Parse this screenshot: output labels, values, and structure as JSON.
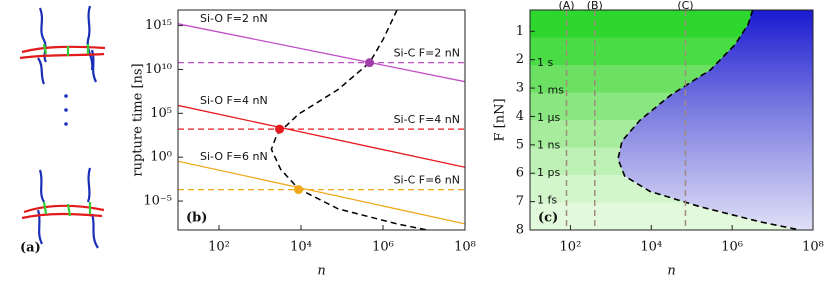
{
  "panel_a": {
    "label": "(a)"
  },
  "chart_data": [
    {
      "type": "line",
      "panel_label": "(b)",
      "xlabel": "n",
      "ylabel": "rupture time [ns]",
      "xscale": "log",
      "yscale": "log",
      "xlim": [
        10,
        100000000
      ],
      "ylim": [
        5e-09,
        6e+16
      ],
      "xticks": [
        {
          "value": 100,
          "label": "10²"
        },
        {
          "value": 10000,
          "label": "10⁴"
        },
        {
          "value": 1000000,
          "label": "10⁶"
        },
        {
          "value": 100000000,
          "label": "10⁸"
        }
      ],
      "yticks": [
        {
          "value": 1e-05,
          "label": "10⁻⁵"
        },
        {
          "value": 1,
          "label": "10⁰"
        },
        {
          "value": 100000,
          "label": "10⁵"
        },
        {
          "value": 10000000000,
          "label": "10¹⁰"
        },
        {
          "value": 1000000000000000.0,
          "label": "10¹⁵"
        }
      ],
      "series": [
        {
          "name": "Si-O F=2 nN",
          "color": "#c04fc8",
          "dashed": false,
          "x": [
            10,
            100000000
          ],
          "values": [
            1600000000000000.0,
            400000000
          ]
        },
        {
          "name": "Si-C F=2 nN",
          "color": "#c04fc8",
          "dashed": true,
          "x": [
            10,
            100000000
          ],
          "values": [
            60000000000,
            60000000000
          ]
        },
        {
          "name": "Si-O F=4 nN",
          "color": "#e8191e",
          "dashed": false,
          "x": [
            10,
            100000000
          ],
          "values": [
            800000,
            0.07
          ]
        },
        {
          "name": "Si-C F=4 nN",
          "color": "#e8191e",
          "dashed": true,
          "x": [
            10,
            100000000
          ],
          "values": [
            1600,
            1600
          ]
        },
        {
          "name": "Si-O F=6 nN",
          "color": "#f0a91c",
          "dashed": false,
          "x": [
            10,
            100000000
          ],
          "values": [
            0.35,
            2.5e-08
          ]
        },
        {
          "name": "Si-C F=6 nN",
          "color": "#f0a91c",
          "dashed": true,
          "x": [
            10,
            100000000
          ],
          "values": [
            0.0002,
            0.0002
          ]
        }
      ],
      "boundary": {
        "color": "#000000",
        "x": [
          2200000,
          1000000,
          470000,
          80000,
          8700,
          2600,
          1900,
          3200,
          8700,
          80000,
          2200000,
          12000000
        ],
        "values": [
          6e+16,
          25000000000000,
          60000000000,
          50000000,
          80000,
          400,
          8,
          0.04,
          0.00025,
          1.3e-06,
          2.5e-08,
          5e-09
        ]
      },
      "markers": {
        "x": [
          470000,
          3000,
          8700
        ],
        "values": [
          60000000000,
          1600,
          0.0002
        ],
        "colors": [
          "#a040a8",
          "#e8191e",
          "#f0a91c"
        ]
      }
    },
    {
      "type": "contour",
      "panel_label": "(c)",
      "xlabel": "n",
      "ylabel": "F [nN]",
      "xscale": "log",
      "xlim": [
        10,
        100000000
      ],
      "ylim": [
        0.25,
        8
      ],
      "y_inverted": true,
      "xticks": [
        {
          "value": 100,
          "label": "10²"
        },
        {
          "value": 10000,
          "label": "10⁴"
        },
        {
          "value": 1000000,
          "label": "10⁶"
        },
        {
          "value": 100000000,
          "label": "10⁸"
        }
      ],
      "yticks": [
        1,
        2,
        3,
        4,
        5,
        6,
        7,
        8
      ],
      "contour_labels": [
        "1 s",
        "1 ms",
        "1 µs",
        "1 ns",
        "1 ps",
        "1 fs"
      ],
      "boundary": {
        "x": [
          3200000,
          2500000,
          1200000,
          290000,
          30000,
          5200,
          1900,
          1500,
          2200,
          9300,
          160000,
          4900000,
          48000000
        ],
        "values": [
          0.25,
          0.75,
          1.46,
          2.36,
          3.25,
          4.14,
          4.86,
          5.5,
          6.1,
          6.64,
          7.18,
          7.71,
          8
        ]
      },
      "vlines": [
        {
          "label": "(A)",
          "x": 80
        },
        {
          "label": "(B)",
          "x": 400
        },
        {
          "label": "(C)",
          "x": 70000
        }
      ],
      "vline_color": "#a08c7c"
    }
  ]
}
